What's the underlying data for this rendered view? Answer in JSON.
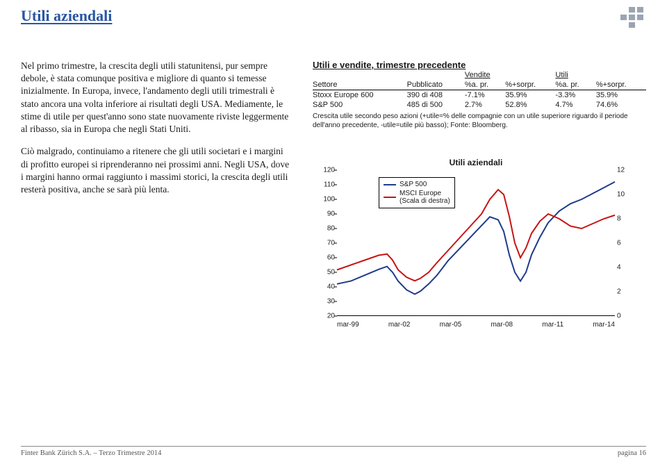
{
  "title": "Utili aziendali",
  "paragraphs": [
    "Nel primo trimestre, la crescita degli utili statunitensi, pur sempre debole, è stata comunque positiva e migliore di quanto si temesse inizialmente. In Europa, invece, l'andamento degli utili trimestrali è stato ancora una volta inferiore ai risultati degli USA. Mediamente, le stime di utile per quest'anno sono state nuovamente riviste leggermente al ribasso, sia in Europa che negli Stati Uniti.",
    "Ciò malgrado, continuiamo a ritenere che gli utili societari e i margini di profitto europei si riprenderanno nei prossimi anni. Negli USA, dove i margini hanno ormai raggiunto i massimi storici, la crescita degli utili resterà positiva, anche se sarà più lenta."
  ],
  "table": {
    "title": "Utili e vendite, trimestre precedente",
    "group_headers": [
      "",
      "",
      "Vendite",
      "",
      "Utili",
      ""
    ],
    "headers": [
      "Settore",
      "Pubblicato",
      "%a. pr.",
      "%+sorpr.",
      "%a. pr.",
      "%+sorpr."
    ],
    "rows": [
      [
        "Stoxx Europe 600",
        "390 di 408",
        "-7.1%",
        "35.9%",
        "-3.3%",
        "35.9%"
      ],
      [
        "S&P 500",
        "485 di 500",
        "2.7%",
        "52.8%",
        "4.7%",
        "74.6%"
      ]
    ],
    "note": "Crescita utile secondo peso azioni (+utile=% delle compagnie con un utile superiore riguardo il periode dell'anno precedente, -utile=utile più basso); Fonte: Bloomberg."
  },
  "chart": {
    "title": "Utili aziendali",
    "left_axis": {
      "min": 20,
      "max": 120,
      "step": 10
    },
    "right_axis": {
      "min": 0,
      "max": 12,
      "step": 2
    },
    "x_labels": [
      "mar-99",
      "mar-02",
      "mar-05",
      "mar-08",
      "mar-11",
      "mar-14"
    ],
    "series": [
      {
        "name": "S&P 500",
        "color": "#1f3b8a",
        "axis": "left",
        "points": [
          [
            0.0,
            42
          ],
          [
            0.05,
            44
          ],
          [
            0.1,
            48
          ],
          [
            0.15,
            52
          ],
          [
            0.18,
            54
          ],
          [
            0.2,
            50
          ],
          [
            0.22,
            44
          ],
          [
            0.25,
            38
          ],
          [
            0.28,
            35
          ],
          [
            0.3,
            37
          ],
          [
            0.33,
            42
          ],
          [
            0.36,
            48
          ],
          [
            0.4,
            58
          ],
          [
            0.44,
            66
          ],
          [
            0.48,
            74
          ],
          [
            0.52,
            82
          ],
          [
            0.55,
            88
          ],
          [
            0.58,
            86
          ],
          [
            0.6,
            78
          ],
          [
            0.62,
            62
          ],
          [
            0.64,
            50
          ],
          [
            0.66,
            44
          ],
          [
            0.68,
            50
          ],
          [
            0.7,
            62
          ],
          [
            0.73,
            74
          ],
          [
            0.76,
            84
          ],
          [
            0.8,
            92
          ],
          [
            0.84,
            97
          ],
          [
            0.88,
            100
          ],
          [
            0.92,
            104
          ],
          [
            0.96,
            108
          ],
          [
            1.0,
            112
          ]
        ]
      },
      {
        "name": "MSCI Europe",
        "sub": "(Scala di destra)",
        "color": "#c81414",
        "axis": "right",
        "points": [
          [
            0.0,
            3.8
          ],
          [
            0.05,
            4.2
          ],
          [
            0.1,
            4.6
          ],
          [
            0.15,
            5.0
          ],
          [
            0.18,
            5.1
          ],
          [
            0.2,
            4.6
          ],
          [
            0.22,
            3.8
          ],
          [
            0.25,
            3.2
          ],
          [
            0.28,
            2.9
          ],
          [
            0.3,
            3.1
          ],
          [
            0.33,
            3.6
          ],
          [
            0.36,
            4.4
          ],
          [
            0.4,
            5.4
          ],
          [
            0.44,
            6.4
          ],
          [
            0.48,
            7.4
          ],
          [
            0.52,
            8.4
          ],
          [
            0.55,
            9.6
          ],
          [
            0.58,
            10.4
          ],
          [
            0.6,
            10.0
          ],
          [
            0.62,
            8.2
          ],
          [
            0.64,
            6.0
          ],
          [
            0.66,
            4.8
          ],
          [
            0.68,
            5.6
          ],
          [
            0.7,
            6.8
          ],
          [
            0.73,
            7.8
          ],
          [
            0.76,
            8.4
          ],
          [
            0.8,
            8.0
          ],
          [
            0.84,
            7.4
          ],
          [
            0.88,
            7.2
          ],
          [
            0.92,
            7.6
          ],
          [
            0.96,
            8.0
          ],
          [
            1.0,
            8.3
          ]
        ]
      }
    ]
  },
  "footer": {
    "left": "Finter Bank Zürich S.A. – Terzo Trimestre 2014",
    "right": "pagina 16"
  },
  "colors": {
    "title": "#2856a3",
    "logo": "#9aa5b1"
  }
}
